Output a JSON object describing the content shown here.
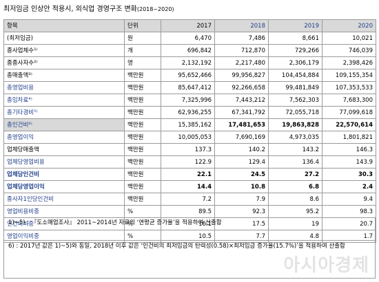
{
  "title": {
    "main": "최저임금 인상안 적용시, 외식업 경영구조 변화",
    "sub": "(2018~2020)"
  },
  "header": {
    "item": "항목",
    "unit": "단위",
    "years": [
      "2017",
      "2018",
      "2019",
      "2020"
    ]
  },
  "rows": [
    {
      "label": "(최저임금)",
      "unit": "원",
      "values": [
        "6,470",
        "7,486",
        "8,661",
        "10,021"
      ]
    },
    {
      "label": "종사업체수¹⁾",
      "unit": "개",
      "values": [
        "696,842",
        "712,870",
        "729,266",
        "746,039"
      ]
    },
    {
      "label": "종종사자수²⁾",
      "unit": "명",
      "values": [
        "2,132,192",
        "2,217,480",
        "2,306,179",
        "2,398,426"
      ]
    },
    {
      "label": "총매출액³⁾",
      "unit": "백만원",
      "values": [
        "95,652,466",
        "99,956,827",
        "104,454,884",
        "109,155,354"
      ]
    },
    {
      "label": "총영업비용",
      "unit": "백만원",
      "values": [
        "85,647,412",
        "92,266,658",
        "99,481,849",
        "107,353,533"
      ]
    },
    {
      "label": "총임차료⁴⁾",
      "unit": "백만원",
      "values": [
        "7,325,996",
        "7,443,212",
        "7,562,303",
        "7,683,300"
      ]
    },
    {
      "label": "총기타경비⁵⁾",
      "unit": "백만원",
      "values": [
        "62,936,255",
        "67,341,792",
        "72,055,718",
        "77,099,618"
      ]
    },
    {
      "label": "총인건비⁶⁾",
      "unit": "백만원",
      "values": [
        "15,385,162",
        "17,481,653",
        "19,863,828",
        "22,570,614"
      ]
    },
    {
      "label": "총영업이익",
      "unit": "백만원",
      "values": [
        "10,005,053",
        "7,690,169",
        "4,973,035",
        "1,801,821"
      ]
    },
    {
      "label": "업체당매출액",
      "unit": "백만원",
      "values": [
        "137.3",
        "140.2",
        "143.2",
        "146.3"
      ]
    },
    {
      "label": "업체당영업비용",
      "unit": "백만원",
      "values": [
        "122.9",
        "129.4",
        "136.4",
        "143.9"
      ]
    },
    {
      "label": "업체당인건비",
      "unit": "백만원",
      "values": [
        "22.1",
        "24.5",
        "27.2",
        "30.3"
      ]
    },
    {
      "label": "업체당영업이익",
      "unit": "백만원",
      "values": [
        "14.4",
        "10.8",
        "6.8",
        "2.4"
      ]
    },
    {
      "label": "종사자1인당인건비",
      "unit": "백만원",
      "values": [
        "7.2",
        "7.9",
        "8.6",
        "9.4"
      ]
    },
    {
      "label": "영업비용비중",
      "unit": "%",
      "values": [
        "89.5",
        "92.3",
        "95.2",
        "98.3"
      ]
    },
    {
      "label": "인건비비중",
      "unit": "%",
      "values": [
        "16.1",
        "17.5",
        "19",
        "20.7"
      ]
    },
    {
      "label": "영업이익비중",
      "unit": "%",
      "values": [
        "10.5",
        "7.7",
        "4.8",
        "1.7"
      ]
    }
  ],
  "notes": {
    "note1": "1)~5) : 『도소매업조사』 2011~2014년 자료의 ‘연평균 증가율’을 적용하여 산출함",
    "note2": "6) : 2017년 값은 1)~5)와 동일, 2018년 이후 값은 ‘인건비의 최저임금의 탄력성(0.58)×최저임금 증가율(15.7%)’을 적용하여 산출함"
  },
  "watermark": "아시아경제",
  "colors": {
    "year_text": "#1f3f8a",
    "header_bg": "#d9d9d9",
    "border": "#9a9a9a"
  }
}
